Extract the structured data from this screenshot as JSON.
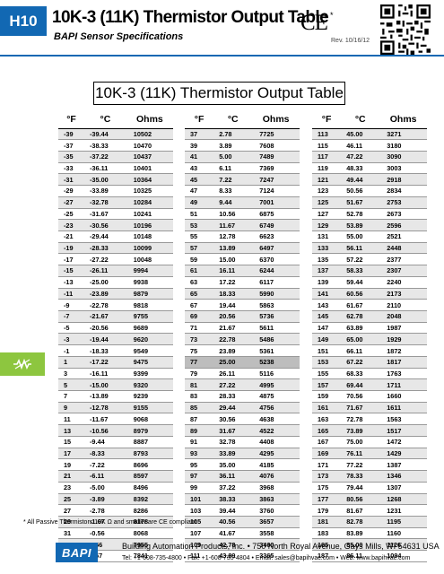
{
  "header": {
    "tab_label": "H10",
    "title": "10K-3 (11K) Thermistor Output Table",
    "subtitle": "BAPI Sensor Specifications",
    "ce_mark": "CE",
    "ce_asterisk": "*",
    "revision": "Rev. 10/16/12",
    "accent_color": "#1268b3",
    "side_tab_color": "#8dc63f",
    "side_tab_icon": "thermistor-icon",
    "qr_icon": "qr-code-icon"
  },
  "main": {
    "title": "10K-3 (11K) Thermistor Output Table",
    "columns": [
      "°F",
      "°C",
      "Ohms"
    ],
    "highlight_color": "#bdbdbd",
    "groups": [
      {
        "rows": [
          [
            "-39",
            "-39.44",
            "10502"
          ],
          [
            "-37",
            "-38.33",
            "10470"
          ],
          [
            "-35",
            "-37.22",
            "10437"
          ],
          [
            "-33",
            "-36.11",
            "10401"
          ],
          [
            "-31",
            "-35.00",
            "10364"
          ],
          [
            "-29",
            "-33.89",
            "10325"
          ],
          [
            "-27",
            "-32.78",
            "10284"
          ],
          [
            "-25",
            "-31.67",
            "10241"
          ],
          [
            "-23",
            "-30.56",
            "10196"
          ],
          [
            "-21",
            "-29.44",
            "10148"
          ],
          [
            "-19",
            "-28.33",
            "10099"
          ],
          [
            "-17",
            "-27.22",
            "10048"
          ],
          [
            "-15",
            "-26.11",
            "9994"
          ],
          [
            "-13",
            "-25.00",
            "9938"
          ],
          [
            "-11",
            "-23.89",
            "9879"
          ],
          [
            "-9",
            "-22.78",
            "9818"
          ],
          [
            "-7",
            "-21.67",
            "9755"
          ],
          [
            "-5",
            "-20.56",
            "9689"
          ],
          [
            "-3",
            "-19.44",
            "9620"
          ],
          [
            "-1",
            "-18.33",
            "9549"
          ],
          [
            "1",
            "-17.22",
            "9475"
          ],
          [
            "3",
            "-16.11",
            "9399"
          ],
          [
            "5",
            "-15.00",
            "9320"
          ],
          [
            "7",
            "-13.89",
            "9239"
          ],
          [
            "9",
            "-12.78",
            "9155"
          ],
          [
            "11",
            "-11.67",
            "9068"
          ],
          [
            "13",
            "-10.56",
            "8979"
          ],
          [
            "15",
            "-9.44",
            "8887"
          ],
          [
            "17",
            "-8.33",
            "8793"
          ],
          [
            "19",
            "-7.22",
            "8696"
          ],
          [
            "21",
            "-6.11",
            "8597"
          ],
          [
            "23",
            "-5.00",
            "8496"
          ],
          [
            "25",
            "-3.89",
            "8392"
          ],
          [
            "27",
            "-2.78",
            "8286"
          ],
          [
            "29",
            "-1.67",
            "8178"
          ],
          [
            "31",
            "-0.56",
            "8068"
          ],
          [
            "33",
            "0.56",
            "7955"
          ],
          [
            "35",
            "1.67",
            "7841"
          ]
        ]
      },
      {
        "rows": [
          [
            "37",
            "2.78",
            "7725"
          ],
          [
            "39",
            "3.89",
            "7608"
          ],
          [
            "41",
            "5.00",
            "7489"
          ],
          [
            "43",
            "6.11",
            "7369"
          ],
          [
            "45",
            "7.22",
            "7247"
          ],
          [
            "47",
            "8.33",
            "7124"
          ],
          [
            "49",
            "9.44",
            "7001"
          ],
          [
            "51",
            "10.56",
            "6875"
          ],
          [
            "53",
            "11.67",
            "6749"
          ],
          [
            "55",
            "12.78",
            "6623"
          ],
          [
            "57",
            "13.89",
            "6497"
          ],
          [
            "59",
            "15.00",
            "6370"
          ],
          [
            "61",
            "16.11",
            "6244"
          ],
          [
            "63",
            "17.22",
            "6117"
          ],
          [
            "65",
            "18.33",
            "5990"
          ],
          [
            "67",
            "19.44",
            "5863"
          ],
          [
            "69",
            "20.56",
            "5736"
          ],
          [
            "71",
            "21.67",
            "5611"
          ],
          [
            "73",
            "22.78",
            "5486"
          ],
          [
            "75",
            "23.89",
            "5361"
          ],
          [
            "77",
            "25.00",
            "5238"
          ],
          [
            "79",
            "26.11",
            "5116"
          ],
          [
            "81",
            "27.22",
            "4995"
          ],
          [
            "83",
            "28.33",
            "4875"
          ],
          [
            "85",
            "29.44",
            "4756"
          ],
          [
            "87",
            "30.56",
            "4638"
          ],
          [
            "89",
            "31.67",
            "4522"
          ],
          [
            "91",
            "32.78",
            "4408"
          ],
          [
            "93",
            "33.89",
            "4295"
          ],
          [
            "95",
            "35.00",
            "4185"
          ],
          [
            "97",
            "36.11",
            "4076"
          ],
          [
            "99",
            "37.22",
            "3968"
          ],
          [
            "101",
            "38.33",
            "3863"
          ],
          [
            "103",
            "39.44",
            "3760"
          ],
          [
            "105",
            "40.56",
            "3657"
          ],
          [
            "107",
            "41.67",
            "3558"
          ],
          [
            "109",
            "42.78",
            "3460"
          ],
          [
            "111",
            "43.89",
            "3365"
          ]
        ],
        "highlight_row": 20
      },
      {
        "rows": [
          [
            "113",
            "45.00",
            "3271"
          ],
          [
            "115",
            "46.11",
            "3180"
          ],
          [
            "117",
            "47.22",
            "3090"
          ],
          [
            "119",
            "48.33",
            "3003"
          ],
          [
            "121",
            "49.44",
            "2918"
          ],
          [
            "123",
            "50.56",
            "2834"
          ],
          [
            "125",
            "51.67",
            "2753"
          ],
          [
            "127",
            "52.78",
            "2673"
          ],
          [
            "129",
            "53.89",
            "2596"
          ],
          [
            "131",
            "55.00",
            "2521"
          ],
          [
            "133",
            "56.11",
            "2448"
          ],
          [
            "135",
            "57.22",
            "2377"
          ],
          [
            "137",
            "58.33",
            "2307"
          ],
          [
            "139",
            "59.44",
            "2240"
          ],
          [
            "141",
            "60.56",
            "2173"
          ],
          [
            "143",
            "61.67",
            "2110"
          ],
          [
            "145",
            "62.78",
            "2048"
          ],
          [
            "147",
            "63.89",
            "1987"
          ],
          [
            "149",
            "65.00",
            "1929"
          ],
          [
            "151",
            "66.11",
            "1872"
          ],
          [
            "153",
            "67.22",
            "1817"
          ],
          [
            "155",
            "68.33",
            "1763"
          ],
          [
            "157",
            "69.44",
            "1711"
          ],
          [
            "159",
            "70.56",
            "1660"
          ],
          [
            "161",
            "71.67",
            "1611"
          ],
          [
            "163",
            "72.78",
            "1563"
          ],
          [
            "165",
            "73.89",
            "1517"
          ],
          [
            "167",
            "75.00",
            "1472"
          ],
          [
            "169",
            "76.11",
            "1429"
          ],
          [
            "171",
            "77.22",
            "1387"
          ],
          [
            "173",
            "78.33",
            "1346"
          ],
          [
            "175",
            "79.44",
            "1307"
          ],
          [
            "177",
            "80.56",
            "1268"
          ],
          [
            "179",
            "81.67",
            "1231"
          ],
          [
            "181",
            "82.78",
            "1195"
          ],
          [
            "183",
            "83.89",
            "1160"
          ],
          [
            "185",
            "85.00",
            "1126"
          ],
          [
            "187",
            "86.11",
            "1094"
          ]
        ]
      }
    ]
  },
  "footnote": "* All Passive Thermistors 10K Ω and smaller are CE compliant.",
  "footer": {
    "logo_text": "BAPI",
    "line1": "Building Automation Products, Inc. • 750 North Royal Avenue, Gays Mills, WI 54631 USA",
    "line2": "Tel: +1-608-735-4800 • Fax: +1-608-735-4804 • Email: sales@bapihvac.com • Web: www.bapihvac.com"
  }
}
